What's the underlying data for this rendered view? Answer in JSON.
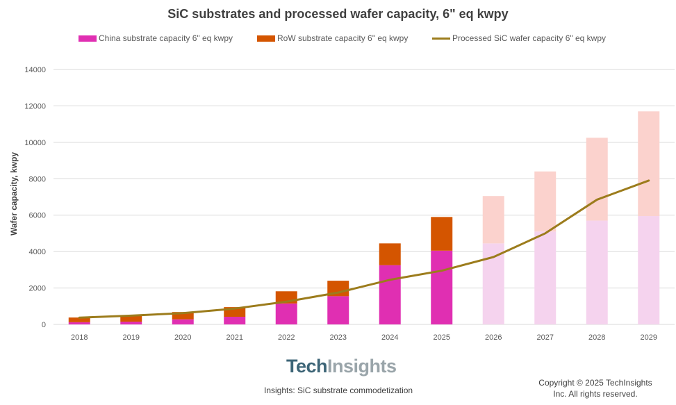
{
  "chart_data": {
    "type": "bar",
    "title": "SiC substrates and processed wafer capacity, 6\" eq kwpy",
    "ylabel": "Wafer capacity,  kwpy",
    "xlabel": "",
    "ylim": [
      0,
      14000
    ],
    "yticks": [
      0,
      2000,
      4000,
      6000,
      8000,
      10000,
      12000,
      14000
    ],
    "grid": true,
    "legend_position": "top",
    "categories": [
      "2018",
      "2019",
      "2020",
      "2021",
      "2022",
      "2023",
      "2024",
      "2025",
      "2026",
      "2027",
      "2028",
      "2029"
    ],
    "forecast_start_index": 8,
    "series": [
      {
        "name": "China substrate capacity 6\" eq kwpy",
        "kind": "stacked-bar",
        "color": "#e02fb2",
        "forecast_color": "#f5d3ee",
        "values": [
          120,
          150,
          280,
          420,
          1150,
          1550,
          3250,
          4050,
          4450,
          5100,
          5700,
          5950
        ]
      },
      {
        "name": "RoW substrate capacity 6\" eq kwpy",
        "kind": "stacked-bar",
        "color": "#d45500",
        "forecast_color": "#fbd2cd",
        "values": [
          260,
          340,
          400,
          530,
          670,
          850,
          1200,
          1850,
          2600,
          3300,
          4550,
          5750
        ]
      },
      {
        "name": "Processed SiC wafer capacity 6\" eq kwpy",
        "kind": "line",
        "color": "#9c7c1c",
        "values": [
          370,
          480,
          620,
          870,
          1250,
          1750,
          2450,
          2950,
          3700,
          5000,
          6850,
          7900
        ]
      }
    ]
  },
  "logo": {
    "part1": "Tech",
    "part2": "Insights"
  },
  "footer": {
    "source": "Insights: SiC substrate commodetization",
    "copyright_line1": "Copyright © 2025  TechInsights",
    "copyright_line2": "Inc.  All rights reserved."
  },
  "colors": {
    "grid": "#d9d9d9",
    "axis_text": "#595959"
  }
}
